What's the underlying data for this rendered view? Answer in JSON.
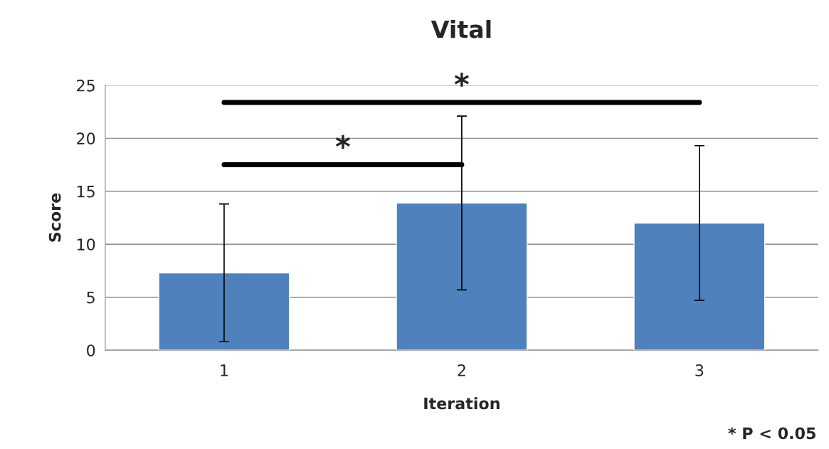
{
  "chart_data": {
    "type": "bar",
    "title": "Vital",
    "xlabel": "Iteration",
    "ylabel": "Score",
    "categories": [
      "1",
      "2",
      "3"
    ],
    "values": [
      7.3,
      13.9,
      12.0
    ],
    "errors": [
      6.5,
      8.2,
      7.3
    ],
    "color": "#4f81bd",
    "ylim": [
      0,
      25
    ],
    "yticks": [
      0,
      5,
      10,
      15,
      20,
      25
    ],
    "grid": "y",
    "annotations": [
      "*",
      "*",
      "* P < 0.05"
    ]
  }
}
